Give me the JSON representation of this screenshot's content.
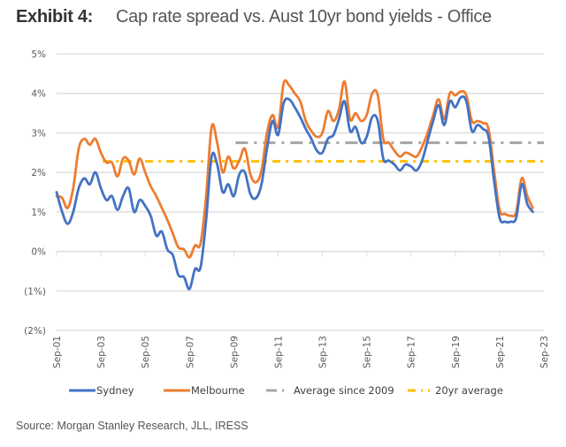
{
  "header": {
    "exhibit_label": "Exhibit 4:",
    "title": "Cap rate spread vs. Aust 10yr bond yields - Office"
  },
  "source": "Source: Morgan Stanley Research, JLL, IRESS",
  "chart_data": {
    "type": "line",
    "title": "Cap rate spread vs. Aust 10yr bond yields - Office",
    "xlabel": "",
    "ylabel": "",
    "ylim": [
      -2,
      5
    ],
    "y_ticks": [
      {
        "value": 5,
        "label": "5%"
      },
      {
        "value": 4,
        "label": "4%"
      },
      {
        "value": 3,
        "label": "3%"
      },
      {
        "value": 2,
        "label": "2%"
      },
      {
        "value": 1,
        "label": "1%"
      },
      {
        "value": 0,
        "label": "0%"
      },
      {
        "value": -1,
        "label": "(1%)"
      },
      {
        "value": -2,
        "label": "(2%)"
      }
    ],
    "x_start": "Sep-01",
    "x_end": "Sep-23",
    "x_frequency": "quarterly",
    "x_ticks": [
      "Sep-01",
      "Sep-03",
      "Sep-05",
      "Sep-07",
      "Sep-09",
      "Sep-11",
      "Sep-13",
      "Sep-15",
      "Sep-17",
      "Sep-19",
      "Sep-21",
      "Sep-23"
    ],
    "grid": true,
    "legend_position": "bottom",
    "series": [
      {
        "name": "Sydney",
        "color": "#4472C4",
        "style": "solid",
        "values": [
          1.5,
          1.0,
          0.7,
          1.0,
          1.6,
          1.85,
          1.7,
          2.0,
          1.6,
          1.3,
          1.4,
          1.05,
          1.4,
          1.6,
          1.0,
          1.3,
          1.15,
          0.9,
          0.4,
          0.5,
          0.05,
          -0.1,
          -0.6,
          -0.65,
          -0.95,
          -0.45,
          -0.4,
          0.8,
          2.4,
          2.2,
          1.5,
          1.7,
          1.4,
          1.95,
          2.0,
          1.45,
          1.35,
          1.7,
          2.6,
          3.3,
          2.95,
          3.75,
          3.85,
          3.65,
          3.4,
          3.1,
          2.85,
          2.55,
          2.5,
          2.85,
          2.95,
          3.35,
          3.8,
          3.05,
          3.15,
          2.75,
          2.9,
          3.4,
          3.3,
          2.35,
          2.3,
          2.2,
          2.05,
          2.2,
          2.15,
          2.05,
          2.3,
          2.8,
          3.3,
          3.7,
          3.2,
          3.8,
          3.65,
          3.9,
          3.8,
          3.05,
          3.2,
          3.1,
          2.9,
          1.8,
          0.85,
          0.75,
          0.75,
          0.85,
          1.7,
          1.2,
          1.0
        ]
      },
      {
        "name": "Melbourne",
        "color": "#ED7D31",
        "style": "solid",
        "values": [
          1.4,
          1.35,
          1.1,
          1.6,
          2.6,
          2.85,
          2.7,
          2.85,
          2.5,
          2.25,
          2.25,
          1.9,
          2.35,
          2.3,
          1.95,
          2.35,
          2.0,
          1.65,
          1.4,
          1.1,
          0.8,
          0.45,
          0.1,
          0.05,
          -0.15,
          0.15,
          0.2,
          1.4,
          3.15,
          2.75,
          2.0,
          2.4,
          2.1,
          2.3,
          2.6,
          1.95,
          1.75,
          2.05,
          3.0,
          3.45,
          3.15,
          4.25,
          4.2,
          4.0,
          3.8,
          3.3,
          3.05,
          2.9,
          3.0,
          3.55,
          3.3,
          3.6,
          4.3,
          3.35,
          3.5,
          3.3,
          3.45,
          4.0,
          3.95,
          2.85,
          2.75,
          2.55,
          2.4,
          2.5,
          2.45,
          2.4,
          2.65,
          3.0,
          3.45,
          3.85,
          3.35,
          4.0,
          3.95,
          4.05,
          3.95,
          3.3,
          3.3,
          3.25,
          3.1,
          2.05,
          1.05,
          0.95,
          0.9,
          1.0,
          1.85,
          1.4,
          1.1
        ]
      },
      {
        "name": "Average since 2009",
        "color": "#A5A5A5",
        "style": "dash-dot",
        "start": "Sep-09",
        "end": "Sep-23",
        "value": 2.75
      },
      {
        "name": "20yr average",
        "color": "#FFC000",
        "style": "dash-dot",
        "start": "Sep-03",
        "end": "Sep-23",
        "value": 2.28
      }
    ]
  }
}
